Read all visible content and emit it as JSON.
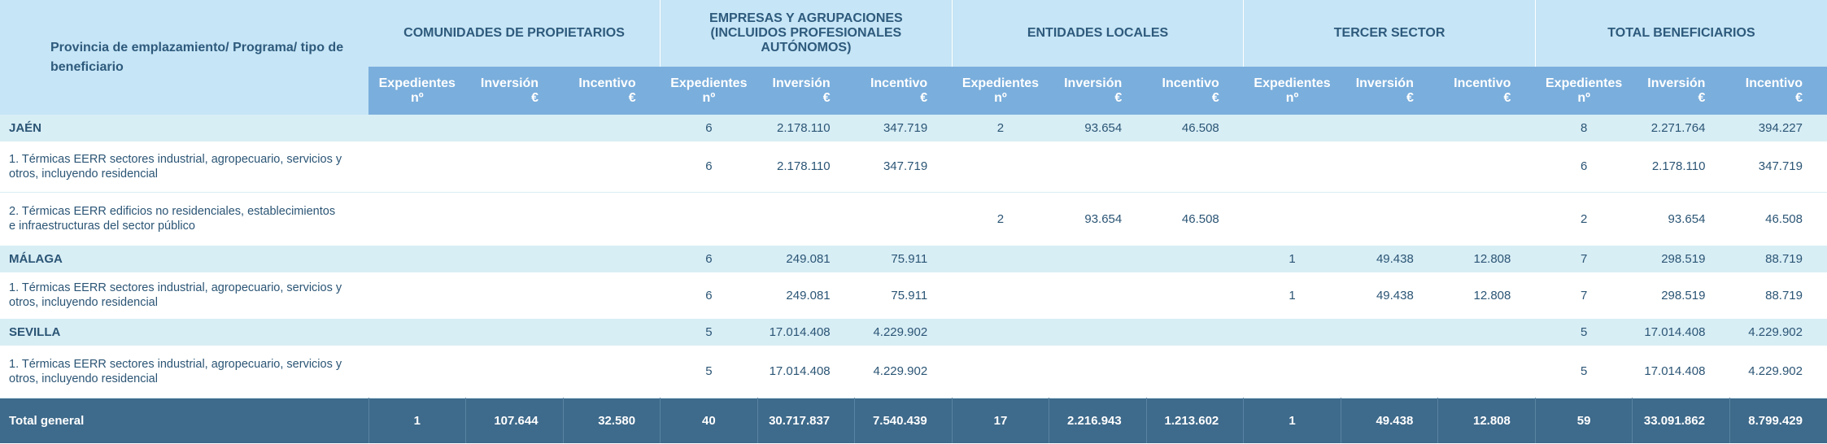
{
  "header": {
    "row_label": "Provincia de emplazamiento/ Programa/ tipo de beneficiario",
    "groups": [
      {
        "title": "COMUNIDADES DE PROPIETARIOS",
        "columns": [
          "Expedientes\nnº",
          "Inversión\n€",
          "Incentivo\n€"
        ]
      },
      {
        "title": "EMPRESAS Y AGRUPACIONES (INCLUIDOS PROFESIONALES AUTÓNOMOS)",
        "columns": [
          "Expedientes\nnº",
          "Inversión\n€",
          "Incentivo\n€"
        ]
      },
      {
        "title": "ENTIDADES LOCALES",
        "columns": [
          "Expedientes\nnº",
          "Inversión\n€",
          "Incentivo\n€"
        ]
      },
      {
        "title": "TERCER SECTOR",
        "columns": [
          "Expedientes\nnº",
          "Inversión\n€",
          "Incentivo\n€"
        ]
      },
      {
        "title": "TOTAL BENEFICIARIOS",
        "columns": [
          "Expedientes\nnº",
          "Inversión\n€",
          "Incentivo\n€"
        ]
      }
    ]
  },
  "provinces": [
    {
      "name": "JAÉN",
      "cells": [
        null,
        null,
        null,
        "6",
        "2.178.110",
        "347.719",
        "2",
        "93.654",
        "46.508",
        null,
        null,
        null,
        "8",
        "2.271.764",
        "394.227"
      ],
      "programs": [
        {
          "label": "1. Térmicas EERR sectores industrial, agropecuario, servicios y otros, incluyendo residencial",
          "cells": [
            null,
            null,
            null,
            "6",
            "2.178.110",
            "347.719",
            null,
            null,
            null,
            null,
            null,
            null,
            "6",
            "2.178.110",
            "347.719"
          ]
        },
        {
          "label": "2. Térmicas EERR edificios no residenciales, establecimientos e infraestructuras del sector público",
          "cells": [
            null,
            null,
            null,
            null,
            null,
            null,
            "2",
            "93.654",
            "46.508",
            null,
            null,
            null,
            "2",
            "93.654",
            "46.508"
          ]
        }
      ]
    },
    {
      "name": "MÁLAGA",
      "cells": [
        null,
        null,
        null,
        "6",
        "249.081",
        "75.911",
        null,
        null,
        null,
        "1",
        "49.438",
        "12.808",
        "7",
        "298.519",
        "88.719"
      ],
      "programs": [
        {
          "label": "1. Térmicas EERR sectores industrial, agropecuario, servicios y otros, incluyendo residencial",
          "cells": [
            null,
            null,
            null,
            "6",
            "249.081",
            "75.911",
            null,
            null,
            null,
            "1",
            "49.438",
            "12.808",
            "7",
            "298.519",
            "88.719"
          ]
        }
      ]
    },
    {
      "name": "SEVILLA",
      "cells": [
        null,
        null,
        null,
        "5",
        "17.014.408",
        "4.229.902",
        null,
        null,
        null,
        null,
        null,
        null,
        "5",
        "17.014.408",
        "4.229.902"
      ],
      "programs": [
        {
          "label": "1. Térmicas EERR sectores industrial, agropecuario, servicios y otros, incluyendo residencial",
          "cells": [
            null,
            null,
            null,
            "5",
            "17.014.408",
            "4.229.902",
            null,
            null,
            null,
            null,
            null,
            null,
            "5",
            "17.014.408",
            "4.229.902"
          ]
        }
      ]
    }
  ],
  "total": {
    "label": "Total general",
    "cells": [
      "1",
      "107.644",
      "32.580",
      "40",
      "30.717.837",
      "7.540.439",
      "17",
      "2.216.943",
      "1.213.602",
      "1",
      "49.438",
      "12.808",
      "59",
      "33.091.862",
      "8.799.429"
    ]
  }
}
